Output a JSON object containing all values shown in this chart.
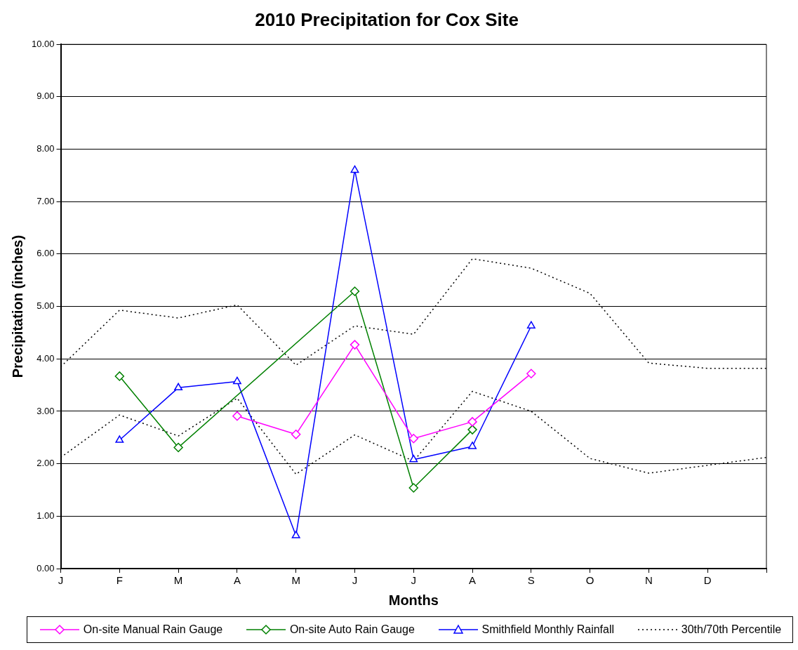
{
  "chart_data": {
    "type": "line",
    "title": "2010 Precipitation for Cox Site",
    "xlabel": "Months",
    "ylabel": "Precipitation (inches)",
    "categories": [
      "J",
      "F",
      "M",
      "A",
      "M",
      "J",
      "J",
      "A",
      "S",
      "O",
      "N",
      "D",
      null
    ],
    "ylim": [
      0,
      10
    ],
    "yticks": [
      {
        "value": 0,
        "label": "0.00"
      },
      {
        "value": 1,
        "label": "1.00"
      },
      {
        "value": 2,
        "label": "2.00"
      },
      {
        "value": 3,
        "label": "3.00"
      },
      {
        "value": 4,
        "label": "4.00"
      },
      {
        "value": 5,
        "label": "5.00"
      },
      {
        "value": 6,
        "label": "6.00"
      },
      {
        "value": 7,
        "label": "7.00"
      },
      {
        "value": 8,
        "label": "8.00"
      },
      {
        "value": 9,
        "label": "9.00"
      },
      {
        "value": 10,
        "label": "10.00"
      }
    ],
    "grid": "y",
    "legend": "bottom",
    "series": [
      {
        "name": "On-site Manual Rain Gauge",
        "color": "#ff00ff",
        "marker": "diamond",
        "values": [
          null,
          null,
          null,
          2.91,
          2.56,
          4.27,
          2.48,
          2.8,
          3.72,
          null,
          null,
          null,
          null
        ]
      },
      {
        "name": "On-site Auto Rain Gauge",
        "color": "#008000",
        "marker": "diamond",
        "values": [
          null,
          3.67,
          2.31,
          null,
          null,
          5.29,
          1.54,
          2.65,
          null,
          null,
          null,
          null,
          null
        ]
      },
      {
        "name": "Smithfield Monthly Rainfall",
        "color": "#0000ff",
        "marker": "triangle",
        "values": [
          null,
          2.45,
          3.45,
          3.57,
          0.63,
          7.6,
          2.08,
          2.33,
          4.63,
          null,
          null,
          null,
          null
        ]
      },
      {
        "name": "30th/70th Percentile",
        "color": "#000000",
        "marker": "none",
        "line_style": "dotted",
        "values": [
          3.85,
          4.93,
          4.78,
          5.03,
          3.88,
          4.63,
          4.47,
          5.91,
          5.73,
          5.25,
          3.92,
          3.82,
          3.82
        ]
      },
      {
        "color": "#000000",
        "marker": "none",
        "line_style": "dotted",
        "values": [
          2.12,
          2.93,
          2.53,
          3.25,
          1.8,
          2.55,
          2.05,
          3.38,
          3.0,
          2.1,
          1.82,
          1.97,
          2.12
        ]
      }
    ]
  }
}
